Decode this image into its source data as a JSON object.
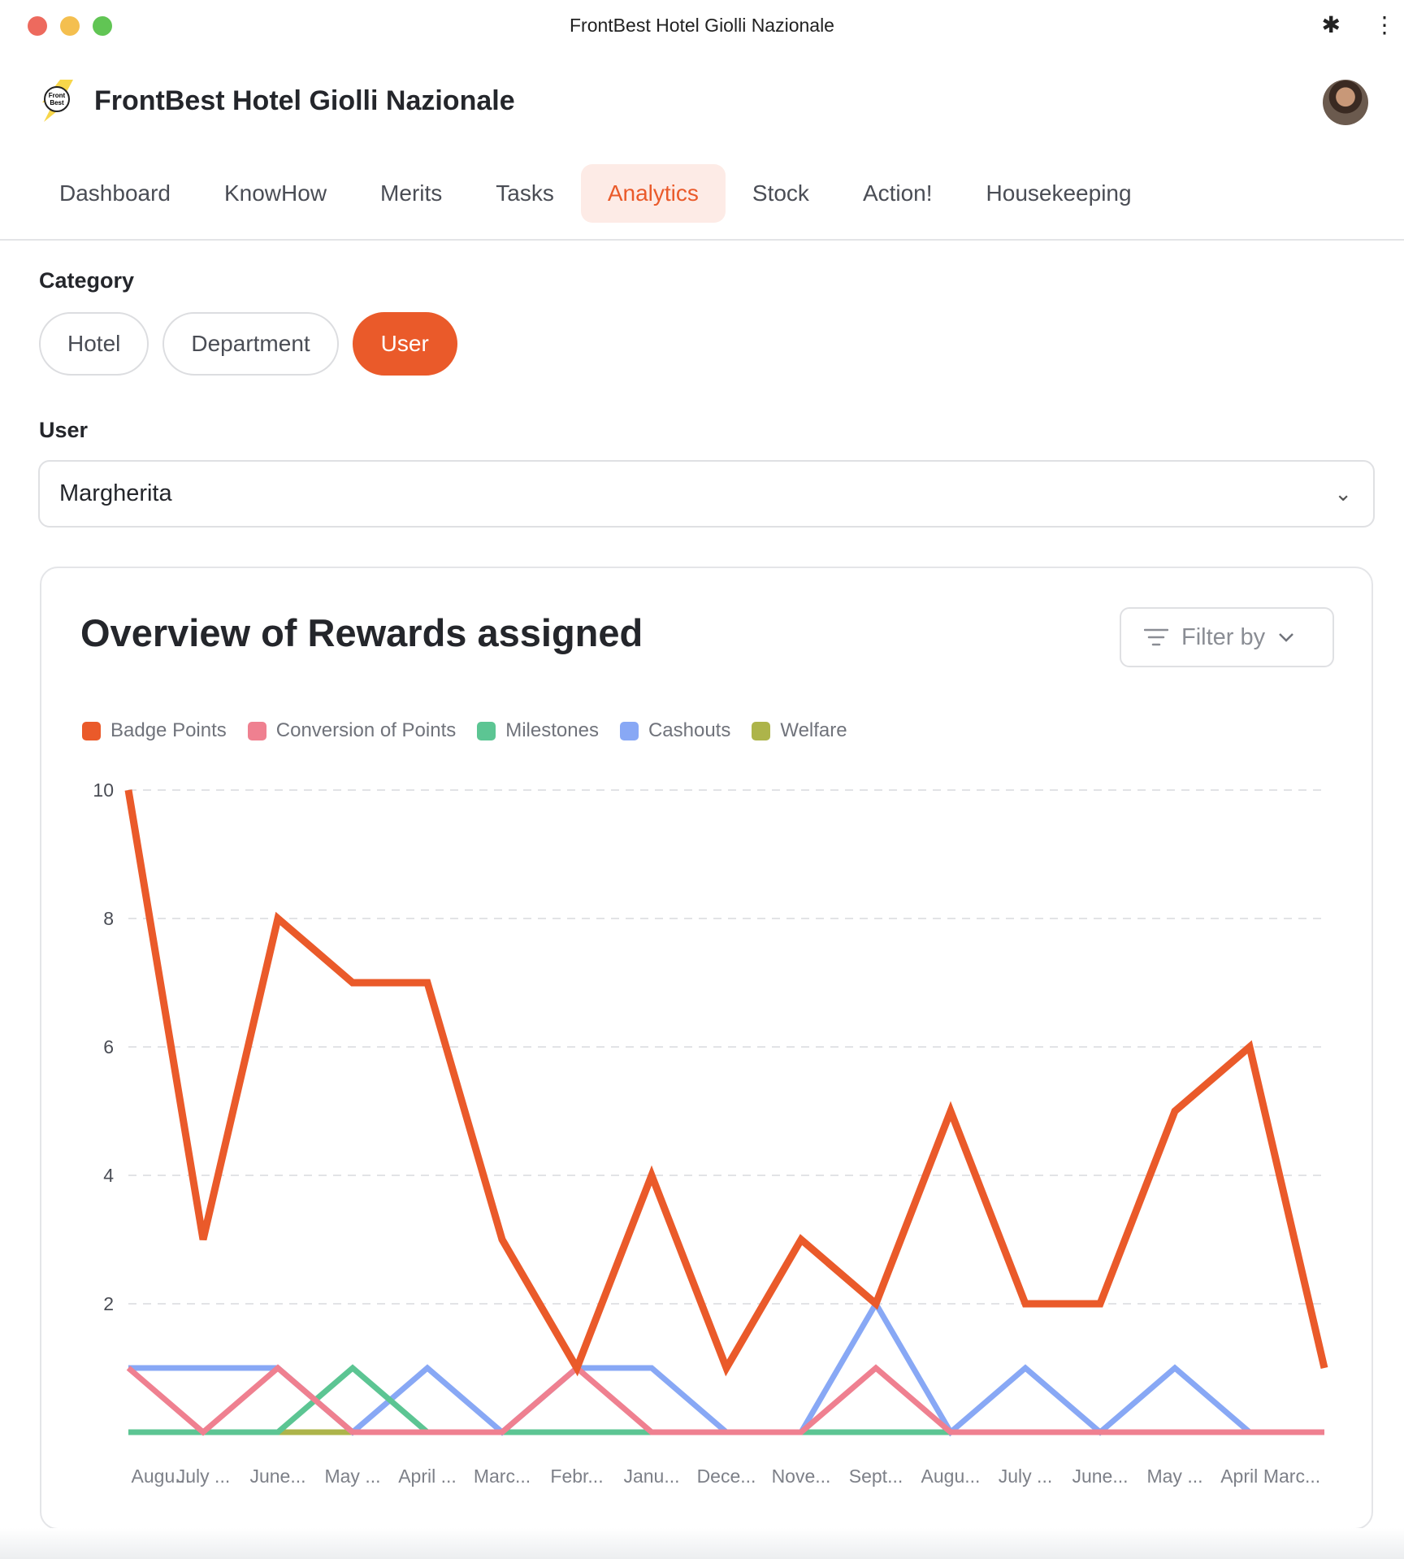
{
  "window": {
    "title": "FrontBest Hotel Giolli Nazionale",
    "icons": [
      "puzzle-icon",
      "more-vertical-icon"
    ]
  },
  "header": {
    "title": "FrontBest Hotel Giolli Nazionale",
    "logo_text": "The Front Best"
  },
  "nav": {
    "items": [
      {
        "label": "Dashboard"
      },
      {
        "label": "KnowHow"
      },
      {
        "label": "Merits"
      },
      {
        "label": "Tasks"
      },
      {
        "label": "Analytics",
        "active": true
      },
      {
        "label": "Stock"
      },
      {
        "label": "Action!"
      },
      {
        "label": "Housekeeping"
      }
    ]
  },
  "category": {
    "label": "Category",
    "options": [
      {
        "label": "Hotel"
      },
      {
        "label": "Department"
      },
      {
        "label": "User",
        "active": true
      }
    ]
  },
  "user": {
    "label": "User",
    "value": "Margherita"
  },
  "card": {
    "title": "Overview of Rewards assigned",
    "filter_label": "Filter by"
  },
  "colors": {
    "accent": "#ea5a2a"
  },
  "chart_data": {
    "type": "line",
    "categories": [
      "Augu...",
      "July ...",
      "June...",
      "May ...",
      "April ...",
      "Marc...",
      "Febr...",
      "Janu...",
      "Dece...",
      "Nove...",
      "Sept...",
      "Augu...",
      "July ...",
      "June...",
      "May ...",
      "April ...",
      "Marc..."
    ],
    "ylim": [
      0,
      10
    ],
    "yticks": [
      "2",
      "4",
      "6",
      "8",
      "10"
    ],
    "grid": true,
    "legend_position": "top-left",
    "series": [
      {
        "name": "Badge Points",
        "color": "#ea5a2a",
        "values": [
          10,
          3,
          8,
          7,
          7,
          3,
          1,
          4,
          1,
          3,
          2,
          5,
          2,
          2,
          5,
          6,
          1
        ]
      },
      {
        "name": "Conversion of Points",
        "color": "#ef8090",
        "values": [
          1,
          0,
          1,
          0,
          0,
          0,
          1,
          0,
          0,
          0,
          1,
          0,
          0,
          0,
          0,
          0,
          0
        ]
      },
      {
        "name": "Milestones",
        "color": "#5cc593",
        "values": [
          0,
          0,
          0,
          1,
          0,
          0,
          0,
          0,
          0,
          0,
          0,
          0,
          0,
          0,
          0,
          0,
          0
        ]
      },
      {
        "name": "Cashouts",
        "color": "#88a8f5",
        "values": [
          1,
          1,
          1,
          0,
          1,
          0,
          1,
          1,
          0,
          0,
          2,
          0,
          1,
          0,
          1,
          0,
          0
        ]
      },
      {
        "name": "Welfare",
        "color": "#adb44a",
        "values": [
          0,
          0,
          0,
          0,
          0,
          0,
          0,
          0,
          0,
          0,
          0,
          0,
          0,
          0,
          0,
          0,
          0
        ]
      }
    ]
  }
}
